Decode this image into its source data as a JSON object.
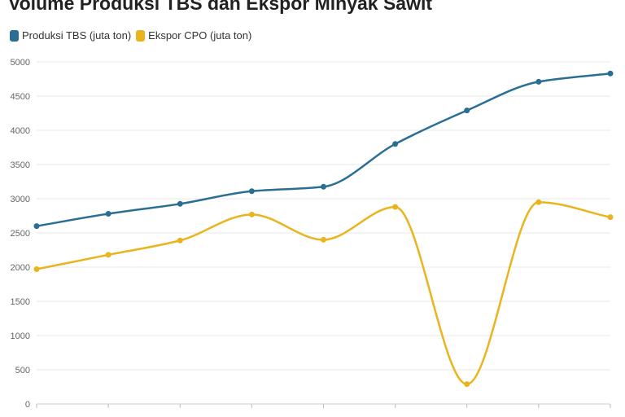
{
  "chart_data": {
    "type": "line",
    "title": "Volume Produksi TBS dan Ekspor Minyak Sawit",
    "xlabel": "",
    "ylabel": "",
    "x": [
      "",
      "",
      "",
      "",
      "",
      "",
      "",
      "",
      ""
    ],
    "ylim": [
      0,
      5000
    ],
    "yticks": [
      0,
      500,
      1000,
      1500,
      2000,
      2500,
      3000,
      3500,
      4000,
      4500,
      5000
    ],
    "grid": true,
    "legend_position": "top-left",
    "series": [
      {
        "name": "Produksi TBS (juta ton)",
        "color": "#2a6f93",
        "values": [
          2600,
          2780,
          2925,
          3110,
          3175,
          3800,
          4290,
          4710,
          4830
        ]
      },
      {
        "name": "Ekspor CPO (juta ton)",
        "color": "#eab41e",
        "values": [
          1970,
          2180,
          2390,
          2770,
          2400,
          2880,
          290,
          2950,
          2730
        ]
      }
    ]
  }
}
